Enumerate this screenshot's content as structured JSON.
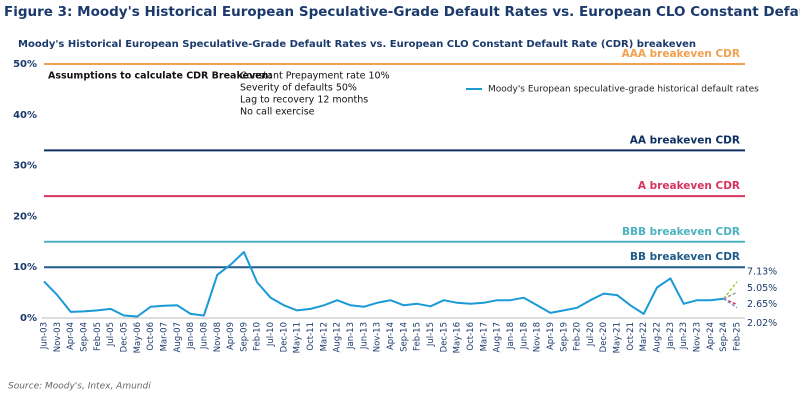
{
  "chart_data": {
    "type": "line",
    "title": "Figure 3: Moody's Historical European Speculative-Grade Default Rates vs. European CLO Constant Default Rate (CDR) breakeven",
    "subtitle": "Moody's Historical European Speculative-Grade Default Rates vs. European CLO Constant Default Rate (CDR) breakeven",
    "source": "Source: Moody's, Intex, Amundi",
    "annotation": {
      "heading": "Assumptions to calculate CDR Breakeven:",
      "lines": [
        "Constant Prepayment rate 10%",
        "Severity of defaults 50%",
        "Lag to recovery 12 months",
        "No call exercise"
      ]
    },
    "categories": [
      "Jun-03",
      "Nov-03",
      "Apr-04",
      "Sep-04",
      "Feb-05",
      "Jul-05",
      "Dec-05",
      "May-06",
      "Oct-06",
      "Mar-07",
      "Aug-07",
      "Jan-08",
      "Jun-08",
      "Nov-08",
      "Apr-09",
      "Sep-09",
      "Feb-10",
      "Jul-10",
      "Dec-10",
      "May-11",
      "Oct-11",
      "Mar-12",
      "Aug-12",
      "Jan-13",
      "Jun-13",
      "Nov-13",
      "Apr-14",
      "Sep-14",
      "Feb-15",
      "Jul-15",
      "Dec-15",
      "May-16",
      "Oct-16",
      "Mar-17",
      "Aug-17",
      "Jan-18",
      "Jun-18",
      "Nov-18",
      "Apr-19",
      "Sep-19",
      "Feb-20",
      "Jul-20",
      "Dec-20",
      "May-21",
      "Oct-21",
      "Mar-22",
      "Aug-22",
      "Jan-23",
      "Jun-23",
      "Nov-23",
      "Apr-24",
      "Sep-24",
      "Feb-25"
    ],
    "series": [
      {
        "name": "Moody's European speculative-grade historical default rates",
        "color": "#1a9ad6",
        "values": [
          7.2,
          4.5,
          1.2,
          1.3,
          1.5,
          1.8,
          0.5,
          0.3,
          2.2,
          2.4,
          2.5,
          0.8,
          0.5,
          8.5,
          10.5,
          13,
          7,
          4,
          2.5,
          1.5,
          1.8,
          2.5,
          3.5,
          2.5,
          2.2,
          3,
          3.5,
          2.5,
          2.8,
          2.3,
          3.5,
          3,
          2.8,
          3,
          3.5,
          3.5,
          4,
          2.5,
          1,
          1.5,
          2,
          3.5,
          4.8,
          4.5,
          2.5,
          0.8,
          6,
          7.8,
          2.8,
          3.5,
          3.5,
          3.8,
          null
        ]
      }
    ],
    "projections": [
      {
        "color": "#9acd32",
        "values": [
          null,
          null,
          null,
          null,
          null,
          null,
          null,
          null,
          null,
          null,
          null,
          null,
          null,
          null,
          null,
          null,
          null,
          null,
          null,
          null,
          null,
          null,
          null,
          null,
          null,
          null,
          null,
          null,
          null,
          null,
          null,
          null,
          null,
          null,
          null,
          null,
          null,
          null,
          null,
          null,
          null,
          null,
          null,
          null,
          null,
          null,
          null,
          null,
          null,
          null,
          null,
          3.8,
          7.13
        ],
        "value_label": "7.13%"
      },
      {
        "color": "#9a9a9a",
        "values": [
          null,
          null,
          null,
          null,
          null,
          null,
          null,
          null,
          null,
          null,
          null,
          null,
          null,
          null,
          null,
          null,
          null,
          null,
          null,
          null,
          null,
          null,
          null,
          null,
          null,
          null,
          null,
          null,
          null,
          null,
          null,
          null,
          null,
          null,
          null,
          null,
          null,
          null,
          null,
          null,
          null,
          null,
          null,
          null,
          null,
          null,
          null,
          null,
          null,
          null,
          null,
          3.8,
          5.05
        ],
        "value_label": "5.05%"
      },
      {
        "color": "#d6335e",
        "values": [
          null,
          null,
          null,
          null,
          null,
          null,
          null,
          null,
          null,
          null,
          null,
          null,
          null,
          null,
          null,
          null,
          null,
          null,
          null,
          null,
          null,
          null,
          null,
          null,
          null,
          null,
          null,
          null,
          null,
          null,
          null,
          null,
          null,
          null,
          null,
          null,
          null,
          null,
          null,
          null,
          null,
          null,
          null,
          null,
          null,
          null,
          null,
          null,
          null,
          null,
          null,
          3.8,
          2.65
        ],
        "value_label": "2.65%"
      },
      {
        "color": "#7b8fd0",
        "values": [
          null,
          null,
          null,
          null,
          null,
          null,
          null,
          null,
          null,
          null,
          null,
          null,
          null,
          null,
          null,
          null,
          null,
          null,
          null,
          null,
          null,
          null,
          null,
          null,
          null,
          null,
          null,
          null,
          null,
          null,
          null,
          null,
          null,
          null,
          null,
          null,
          null,
          null,
          null,
          null,
          null,
          null,
          null,
          null,
          null,
          null,
          null,
          null,
          null,
          null,
          null,
          3.8,
          2.02
        ],
        "value_label": "2.02%"
      }
    ],
    "reference_lines": [
      {
        "name": "AAA breakeven CDR",
        "value": 50,
        "color": "#f0a050"
      },
      {
        "name": "AA breakeven CDR",
        "value": 33,
        "color": "#0f3060"
      },
      {
        "name": "A breakeven CDR",
        "value": 24,
        "color": "#d6335e"
      },
      {
        "name": "BBB breakeven CDR",
        "value": 15,
        "color": "#4bb3c0"
      },
      {
        "name": "BB breakeven CDR",
        "value": 10,
        "color": "#1f5c8a"
      }
    ],
    "ylim": [
      0,
      50
    ],
    "yticks": [
      {
        "value": 0,
        "label": "0%"
      },
      {
        "value": 10,
        "label": "10%"
      },
      {
        "value": 20,
        "label": "20%"
      },
      {
        "value": 30,
        "label": "30%"
      },
      {
        "value": 40,
        "label": "40%"
      },
      {
        "value": 50,
        "label": "50%"
      }
    ],
    "grid": false
  }
}
